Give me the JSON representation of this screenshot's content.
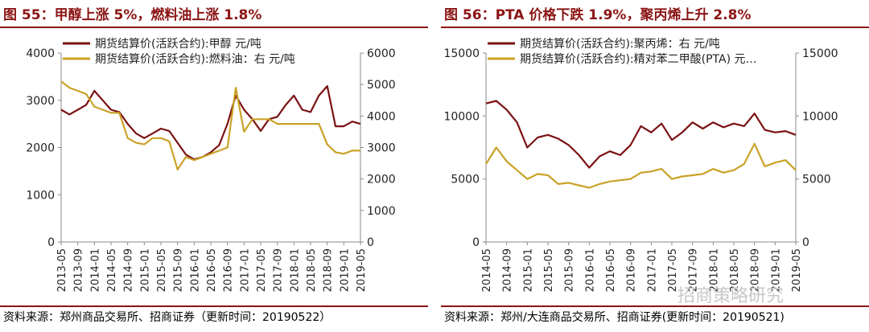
{
  "charts": [
    {
      "title": "图 55：甲醇上涨 5%，燃料油上涨 1.8%",
      "source": "资料来源：郑州商品交易所、招商证券（更新时间：20190522）",
      "chart_data": {
        "type": "line",
        "x": [
          "2013-05",
          "2013-07",
          "2013-09",
          "2013-11",
          "2014-01",
          "2014-03",
          "2014-05",
          "2014-07",
          "2014-09",
          "2014-11",
          "2015-01",
          "2015-03",
          "2015-05",
          "2015-07",
          "2015-09",
          "2015-11",
          "2016-01",
          "2016-03",
          "2016-05",
          "2016-07",
          "2016-09",
          "2016-11",
          "2017-01",
          "2017-03",
          "2017-05",
          "2017-07",
          "2017-09",
          "2017-11",
          "2018-01",
          "2018-03",
          "2018-05",
          "2018-07",
          "2018-09",
          "2018-11",
          "2019-01",
          "2019-03",
          "2019-05"
        ],
        "xticks": [
          "2013-05",
          "2013-09",
          "2014-01",
          "2014-05",
          "2014-09",
          "2015-01",
          "2015-05",
          "2015-09",
          "2016-01",
          "2016-05",
          "2016-09",
          "2017-01",
          "2017-05",
          "2017-09",
          "2018-01",
          "2018-05",
          "2018-09",
          "2019-01",
          "2019-05"
        ],
        "series": [
          {
            "name": "期货结算价(活跃合约):甲醇 元/吨",
            "axis": "left",
            "color": "#7b1113",
            "values": [
              2800,
              2700,
              2800,
              2900,
              3200,
              3000,
              2800,
              2750,
              2500,
              2300,
              2200,
              2300,
              2400,
              2350,
              2100,
              1850,
              1750,
              1800,
              1900,
              2050,
              2500,
              3100,
              2800,
              2600,
              2350,
              2600,
              2650,
              2900,
              3100,
              2800,
              2750,
              3100,
              3300,
              2450,
              2450,
              2550,
              2500
            ]
          },
          {
            "name": "期货结算价(活跃合约):燃料油：右 元/吨",
            "axis": "right",
            "color": "#c9a227",
            "values": [
              5100,
              4900,
              4800,
              4700,
              4300,
              4200,
              4100,
              4100,
              3300,
              3150,
              3100,
              3300,
              3300,
              3200,
              2300,
              2700,
              2600,
              2700,
              2800,
              2900,
              3000,
              4900,
              3500,
              3900,
              3900,
              3900,
              3750,
              3750,
              3750,
              3750,
              3750,
              3750,
              3100,
              2850,
              2800,
              2900,
              2900
            ]
          }
        ],
        "ylim_left": [
          0,
          4000
        ],
        "yticks_left": [
          0,
          1000,
          2000,
          3000,
          4000
        ],
        "ylim_right": [
          0,
          6000
        ],
        "yticks_right": [
          0,
          1000,
          2000,
          3000,
          4000,
          5000,
          6000
        ]
      }
    },
    {
      "title": "图 56：PTA 价格下跌 1.9%，聚丙烯上升 2.8%",
      "source": "资料来源：郑州/大连商品交易所、招商证券(更新时间：20190521)",
      "chart_data": {
        "type": "line",
        "x": [
          "2014-05",
          "2014-07",
          "2014-09",
          "2014-11",
          "2015-01",
          "2015-03",
          "2015-05",
          "2015-07",
          "2015-09",
          "2015-11",
          "2016-01",
          "2016-03",
          "2016-05",
          "2016-07",
          "2016-09",
          "2016-11",
          "2017-01",
          "2017-03",
          "2017-05",
          "2017-07",
          "2017-09",
          "2017-11",
          "2018-01",
          "2018-03",
          "2018-05",
          "2018-07",
          "2018-09",
          "2018-11",
          "2019-01",
          "2019-03",
          "2019-05"
        ],
        "xticks": [
          "2014-05",
          "2014-09",
          "2015-01",
          "2015-05",
          "2015-09",
          "2016-01",
          "2016-05",
          "2016-09",
          "2017-01",
          "2017-05",
          "2017-09",
          "2018-01",
          "2018-05",
          "2018-09",
          "2019-01",
          "2019-05"
        ],
        "series": [
          {
            "name": "期货结算价(活跃合约):聚丙烯：右 元/吨",
            "axis": "right",
            "color": "#7b1113",
            "values": [
              11000,
              11200,
              10500,
              9500,
              7500,
              8300,
              8500,
              8200,
              7700,
              6900,
              5900,
              6800,
              7200,
              6900,
              7700,
              9200,
              8700,
              9400,
              8100,
              8700,
              9500,
              9000,
              9500,
              9100,
              9400,
              9200,
              10200,
              8900,
              8700,
              8800,
              8500
            ]
          },
          {
            "name": "期货结算价(活跃合约):精对苯二甲酸(PTA) 元…",
            "axis": "left",
            "color": "#c9a227",
            "values": [
              6200,
              7500,
              6400,
              5700,
              5000,
              5400,
              5300,
              4600,
              4700,
              4500,
              4300,
              4600,
              4800,
              4900,
              5000,
              5500,
              5600,
              5800,
              5000,
              5200,
              5300,
              5400,
              5800,
              5500,
              5700,
              6200,
              7800,
              6000,
              6300,
              6500,
              5700
            ]
          }
        ],
        "ylim_left": [
          0,
          15000
        ],
        "yticks_left": [
          0,
          5000,
          10000,
          15000
        ],
        "ylim_right": [
          0,
          15000
        ],
        "yticks_right": [
          0,
          5000,
          10000,
          15000
        ]
      }
    }
  ],
  "watermark": "招商策略研究"
}
